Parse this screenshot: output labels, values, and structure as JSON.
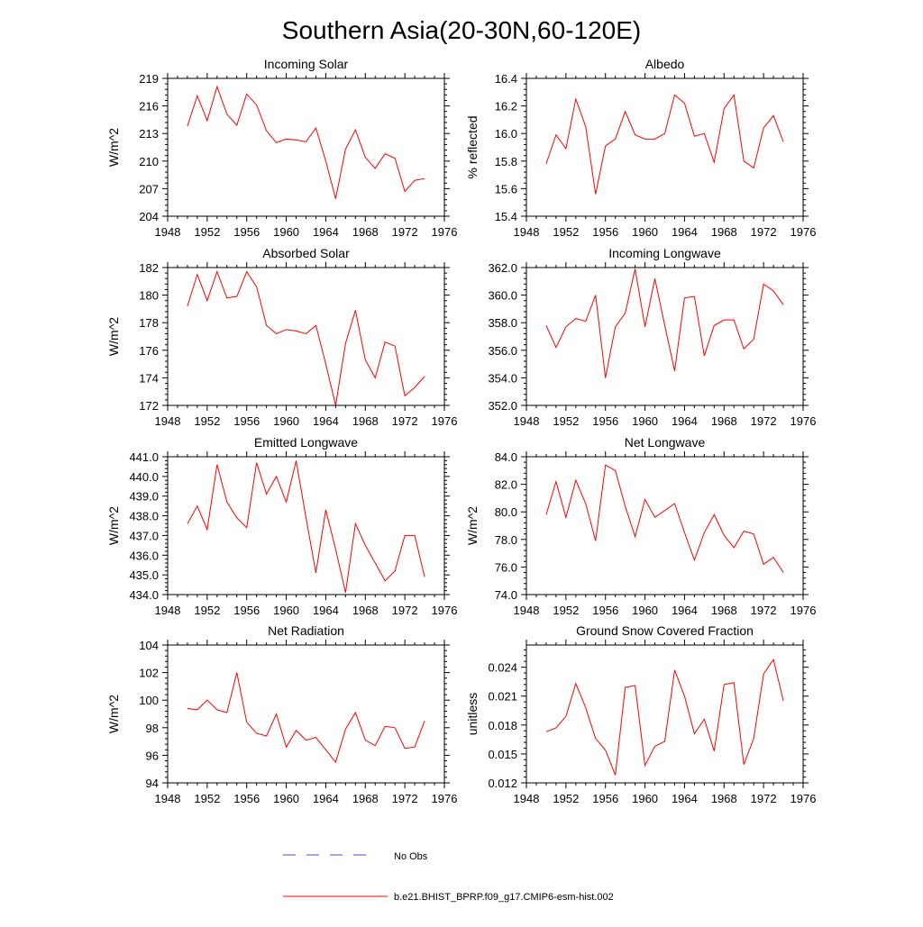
{
  "figure": {
    "title": "Southern Asia(20-30N,60-120E)",
    "legend": {
      "obs_label": "No Obs",
      "obs_color": "#4b4bd8",
      "model_label": "b.e21.BHIST_BPRP.f09_g17.CMIP6-esm-hist.002",
      "model_color": "#ff0000"
    }
  },
  "chart_data": [
    {
      "type": "line",
      "title": "Incoming Solar",
      "xlabel": "",
      "ylabel": "W/m^2",
      "xlim": [
        1948,
        1976
      ],
      "ylim": [
        204,
        219
      ],
      "xticks": [
        1948,
        1952,
        1956,
        1960,
        1964,
        1968,
        1972,
        1976
      ],
      "yticks": [
        204,
        207,
        210,
        213,
        216,
        219
      ],
      "ytick_labels": [
        "204",
        "207",
        "210",
        "213",
        "216",
        "219"
      ],
      "x": [
        1950,
        1951,
        1952,
        1953,
        1954,
        1955,
        1956,
        1957,
        1958,
        1959,
        1960,
        1961,
        1962,
        1963,
        1964,
        1965,
        1966,
        1967,
        1968,
        1969,
        1970,
        1971,
        1972,
        1973,
        1974
      ],
      "values": [
        213.8,
        217.1,
        214.4,
        218.1,
        215.1,
        213.9,
        217.3,
        216.1,
        213.3,
        212.0,
        212.4,
        212.3,
        212.1,
        213.6,
        210.0,
        205.9,
        211.3,
        213.4,
        210.4,
        209.2,
        210.8,
        210.3,
        206.7,
        207.9,
        208.1
      ],
      "color": "#ff0000"
    },
    {
      "type": "line",
      "title": "Albedo",
      "xlabel": "",
      "ylabel": "% reflected",
      "xlim": [
        1948,
        1976
      ],
      "ylim": [
        15.4,
        16.4
      ],
      "xticks": [
        1948,
        1952,
        1956,
        1960,
        1964,
        1968,
        1972,
        1976
      ],
      "yticks": [
        15.4,
        15.6,
        15.8,
        16.0,
        16.2,
        16.4
      ],
      "ytick_labels": [
        "15.4",
        "15.6",
        "15.8",
        "16.0",
        "16.2",
        "16.4"
      ],
      "x": [
        1950,
        1951,
        1952,
        1953,
        1954,
        1955,
        1956,
        1957,
        1958,
        1959,
        1960,
        1961,
        1962,
        1963,
        1964,
        1965,
        1966,
        1967,
        1968,
        1969,
        1970,
        1971,
        1972,
        1973,
        1974
      ],
      "values": [
        15.78,
        15.99,
        15.89,
        16.25,
        16.05,
        15.56,
        15.91,
        15.96,
        16.16,
        15.99,
        15.96,
        15.96,
        16.0,
        16.28,
        16.22,
        15.98,
        16.0,
        15.79,
        16.18,
        16.28,
        15.8,
        15.75,
        16.04,
        16.13,
        15.94
      ],
      "color": "#ff0000"
    },
    {
      "type": "line",
      "title": "Absorbed Solar",
      "xlabel": "",
      "ylabel": "W/m^2",
      "xlim": [
        1948,
        1976
      ],
      "ylim": [
        172,
        182
      ],
      "xticks": [
        1948,
        1952,
        1956,
        1960,
        1964,
        1968,
        1972,
        1976
      ],
      "yticks": [
        172,
        174,
        176,
        178,
        180,
        182
      ],
      "ytick_labels": [
        "172",
        "174",
        "176",
        "178",
        "180",
        "182"
      ],
      "x": [
        1950,
        1951,
        1952,
        1953,
        1954,
        1955,
        1956,
        1957,
        1958,
        1959,
        1960,
        1961,
        1962,
        1963,
        1964,
        1965,
        1966,
        1967,
        1968,
        1969,
        1970,
        1971,
        1972,
        1973,
        1974
      ],
      "values": [
        179.2,
        181.5,
        179.6,
        181.7,
        179.8,
        179.9,
        181.7,
        180.6,
        177.8,
        177.2,
        177.5,
        177.4,
        177.2,
        177.8,
        175.0,
        172.0,
        176.5,
        178.9,
        175.3,
        174.0,
        176.6,
        176.3,
        172.7,
        173.3,
        174.1
      ],
      "color": "#ff0000"
    },
    {
      "type": "line",
      "title": "Incoming Longwave",
      "xlabel": "",
      "ylabel": "",
      "xlim": [
        1948,
        1976
      ],
      "ylim": [
        352.0,
        362.0
      ],
      "xticks": [
        1948,
        1952,
        1956,
        1960,
        1964,
        1968,
        1972,
        1976
      ],
      "yticks": [
        352,
        354,
        356,
        358,
        360,
        362
      ],
      "ytick_labels": [
        "352.0",
        "354.0",
        "356.0",
        "358.0",
        "360.0",
        "362.0"
      ],
      "x": [
        1950,
        1951,
        1952,
        1953,
        1954,
        1955,
        1956,
        1957,
        1958,
        1959,
        1960,
        1961,
        1962,
        1963,
        1964,
        1965,
        1966,
        1967,
        1968,
        1969,
        1970,
        1971,
        1972,
        1973,
        1974
      ],
      "values": [
        357.8,
        356.2,
        357.7,
        358.3,
        358.1,
        360.0,
        354.0,
        357.7,
        358.7,
        361.9,
        357.7,
        361.2,
        357.8,
        354.5,
        359.8,
        359.9,
        355.6,
        357.8,
        358.2,
        358.2,
        356.1,
        356.8,
        360.8,
        360.3,
        359.3
      ],
      "color": "#ff0000"
    },
    {
      "type": "line",
      "title": "Emitted Longwave",
      "xlabel": "",
      "ylabel": "W/m^2",
      "xlim": [
        1948,
        1976
      ],
      "ylim": [
        434.0,
        441.0
      ],
      "xticks": [
        1948,
        1952,
        1956,
        1960,
        1964,
        1968,
        1972,
        1976
      ],
      "yticks": [
        434,
        435,
        436,
        437,
        438,
        439,
        440,
        441
      ],
      "ytick_labels": [
        "434.0",
        "435.0",
        "436.0",
        "437.0",
        "438.0",
        "439.0",
        "440.0",
        "441.0"
      ],
      "x": [
        1950,
        1951,
        1952,
        1953,
        1954,
        1955,
        1956,
        1957,
        1958,
        1959,
        1960,
        1961,
        1962,
        1963,
        1964,
        1965,
        1966,
        1967,
        1968,
        1969,
        1970,
        1971,
        1972,
        1973,
        1974
      ],
      "values": [
        437.6,
        438.5,
        437.3,
        440.6,
        438.7,
        437.9,
        437.4,
        440.7,
        439.1,
        440.0,
        438.7,
        440.8,
        437.9,
        435.1,
        438.3,
        436.3,
        434.1,
        437.6,
        436.5,
        435.6,
        434.7,
        435.2,
        437.0,
        437.0,
        434.9
      ],
      "color": "#ff0000"
    },
    {
      "type": "line",
      "title": "Net Longwave",
      "xlabel": "",
      "ylabel": "W/m^2",
      "xlim": [
        1948,
        1976
      ],
      "ylim": [
        74.0,
        84.0
      ],
      "xticks": [
        1948,
        1952,
        1956,
        1960,
        1964,
        1968,
        1972,
        1976
      ],
      "yticks": [
        74,
        76,
        78,
        80,
        82,
        84
      ],
      "ytick_labels": [
        "74.0",
        "76.0",
        "78.0",
        "80.0",
        "82.0",
        "84.0"
      ],
      "x": [
        1950,
        1951,
        1952,
        1953,
        1954,
        1955,
        1956,
        1957,
        1958,
        1959,
        1960,
        1961,
        1962,
        1963,
        1964,
        1965,
        1966,
        1967,
        1968,
        1969,
        1970,
        1971,
        1972,
        1973,
        1974
      ],
      "values": [
        79.8,
        82.2,
        79.6,
        82.3,
        80.6,
        77.9,
        83.4,
        83.0,
        80.4,
        78.2,
        80.9,
        79.6,
        80.1,
        80.6,
        78.5,
        76.5,
        78.5,
        79.8,
        78.3,
        77.4,
        78.6,
        78.4,
        76.2,
        76.7,
        75.6
      ],
      "color": "#ff0000"
    },
    {
      "type": "line",
      "title": "Net Radiation",
      "xlabel": "",
      "ylabel": "W/m^2",
      "xlim": [
        1948,
        1976
      ],
      "ylim": [
        94,
        104
      ],
      "xticks": [
        1948,
        1952,
        1956,
        1960,
        1964,
        1968,
        1972,
        1976
      ],
      "yticks": [
        94,
        96,
        98,
        100,
        102,
        104
      ],
      "ytick_labels": [
        "94",
        "96",
        "98",
        "100",
        "102",
        "104"
      ],
      "x": [
        1950,
        1951,
        1952,
        1953,
        1954,
        1955,
        1956,
        1957,
        1958,
        1959,
        1960,
        1961,
        1962,
        1963,
        1964,
        1965,
        1966,
        1967,
        1968,
        1969,
        1970,
        1971,
        1972,
        1973,
        1974
      ],
      "values": [
        99.4,
        99.3,
        100.0,
        99.3,
        99.1,
        102.0,
        98.4,
        97.6,
        97.4,
        99.0,
        96.6,
        97.8,
        97.1,
        97.3,
        96.4,
        95.5,
        97.9,
        99.1,
        97.1,
        96.7,
        98.1,
        98.0,
        96.5,
        96.6,
        98.5
      ],
      "color": "#ff0000"
    },
    {
      "type": "line",
      "title": "Ground Snow Covered Fraction",
      "xlabel": "",
      "ylabel": "unitless",
      "xlim": [
        1948,
        1976
      ],
      "ylim": [
        0.012,
        0.0263
      ],
      "xticks": [
        1948,
        1952,
        1956,
        1960,
        1964,
        1968,
        1972,
        1976
      ],
      "yticks": [
        0.012,
        0.015,
        0.018,
        0.021,
        0.024
      ],
      "ytick_labels": [
        "0.012",
        "0.015",
        "0.018",
        "0.021",
        "0.024"
      ],
      "x": [
        1950,
        1951,
        1952,
        1953,
        1954,
        1955,
        1956,
        1957,
        1958,
        1959,
        1960,
        1961,
        1962,
        1963,
        1964,
        1965,
        1966,
        1967,
        1968,
        1969,
        1970,
        1971,
        1972,
        1973,
        1974
      ],
      "values": [
        0.0173,
        0.0177,
        0.0189,
        0.0223,
        0.0198,
        0.0166,
        0.0154,
        0.0128,
        0.0219,
        0.0221,
        0.0138,
        0.0158,
        0.0163,
        0.0237,
        0.021,
        0.0171,
        0.0186,
        0.0153,
        0.0222,
        0.0224,
        0.0139,
        0.0166,
        0.0233,
        0.0248,
        0.0205
      ],
      "color": "#ff0000"
    }
  ]
}
